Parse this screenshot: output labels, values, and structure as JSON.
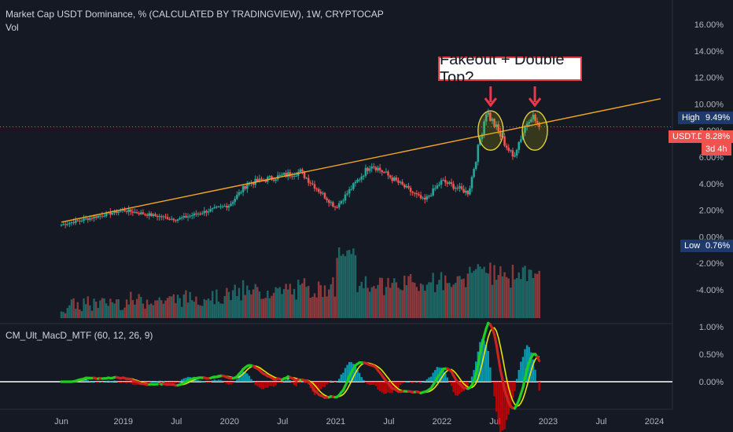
{
  "header": {
    "title": "Market Cap USDT Dominance, % (CALCULATED BY TRADINGVIEW), 1W, CRYPTOCAP",
    "sub": "Vol",
    "indicator": "CM_Ult_MacD_MTF (60, 12, 26, 9)"
  },
  "annotation": {
    "text": "Fakeout + Double Top?"
  },
  "price_tags": {
    "high_label": "High",
    "high_value": "9.49%",
    "symbol": "USDT.D",
    "symbol_value": "8.28%",
    "countdown": "3d 4h",
    "low_label": "Low",
    "low_value": "0.76%"
  },
  "colors": {
    "background": "#151924",
    "up": "#26a69a",
    "down": "#ef5350",
    "trendline": "#f5a623",
    "annotation_border": "#e8394a",
    "macd_up": "#22cc22",
    "macd_down": "#cc2222",
    "signal": "#e6e600",
    "hist_pos": "#00bcd4",
    "hist_neg": "#e00000",
    "zero_line": "#ffffff"
  },
  "chart_data": [
    {
      "type": "candlestick",
      "title": "Market Cap USDT Dominance, % (CALCULATED BY TRADINGVIEW), 1W, CRYPTOCAP",
      "x_ticks": [
        "Jun",
        "2019",
        "Jul",
        "2020",
        "Jul",
        "2021",
        "Jul",
        "2022",
        "Jul",
        "2023",
        "Jul",
        "2024"
      ],
      "y_ticks": [
        "16.00%",
        "14.00%",
        "12.00%",
        "10.00%",
        "8.00%",
        "6.00%",
        "4.00%",
        "2.00%",
        "0.00%",
        "-2.00%",
        "-4.00%"
      ],
      "ylim": [
        -4,
        16
      ],
      "y_unit": "%",
      "high": 9.49,
      "low": 0.76,
      "last": 8.28,
      "trendline": {
        "from": [
          "Jun 2018",
          1.1
        ],
        "to": [
          "Jan 2023 (extended)",
          10.4
        ]
      },
      "key_points": [
        {
          "date": "Jun 2018",
          "value": 0.9
        },
        {
          "date": "Jan 2019",
          "value": 2.0
        },
        {
          "date": "Jul 2019",
          "value": 1.3
        },
        {
          "date": "Jan 2020",
          "value": 2.4
        },
        {
          "date": "Mar 2020",
          "value": 4.0
        },
        {
          "date": "Sep 2020",
          "value": 4.9
        },
        {
          "date": "Jan 2021",
          "value": 2.2
        },
        {
          "date": "May 2021",
          "value": 5.5
        },
        {
          "date": "Nov 2021",
          "value": 2.7
        },
        {
          "date": "Jan 2022",
          "value": 4.2
        },
        {
          "date": "Apr 2022",
          "value": 3.3
        },
        {
          "date": "Jun 2022",
          "value": 9.49
        },
        {
          "date": "Sep 2022",
          "value": 6.0
        },
        {
          "date": "Nov 2022",
          "value": 9.3
        },
        {
          "date": "Dec 2022",
          "value": 8.28
        }
      ]
    },
    {
      "type": "line",
      "title": "CM_Ult_MacD_MTF (60, 12, 26, 9)",
      "y_ticks": [
        "1.00%",
        "0.50%",
        "0.00%"
      ],
      "ylim": [
        -0.3,
        1.05
      ]
    }
  ]
}
